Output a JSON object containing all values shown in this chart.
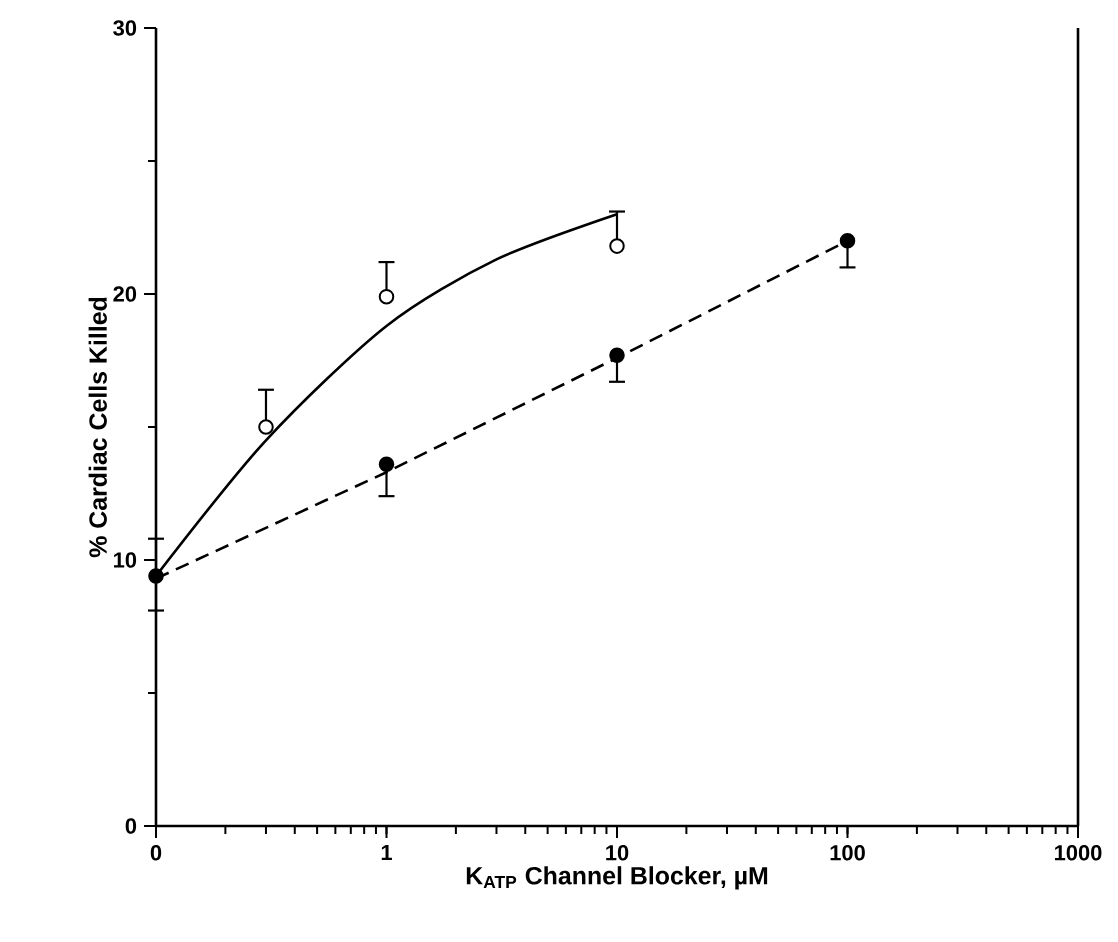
{
  "chart_data": {
    "type": "scatter",
    "xlabel": "K$_{ATP}$ Channel Blocker, µM",
    "ylabel": "% Cardiac Cells Killed",
    "log": "x",
    "xlim": [
      0.1,
      1000
    ],
    "xticks": [
      {
        "value": 0.1,
        "label": "0"
      },
      1,
      10,
      100,
      1000
    ],
    "ylim": [
      0,
      30
    ],
    "yticks": [
      0,
      10,
      20,
      30
    ],
    "series": [
      {
        "type": "line",
        "line_style": "solid",
        "marker": "none",
        "color": "#000000",
        "x": [
          0.1,
          0.3,
          1,
          3,
          10
        ],
        "values": [
          9.4,
          14.5,
          18.8,
          21.3,
          23.0
        ]
      },
      {
        "type": "line",
        "line_style": "dashed",
        "marker": "none",
        "color": "#000000",
        "x": [
          0.1,
          1,
          10,
          100
        ],
        "values": [
          9.3,
          13.3,
          17.6,
          22.0
        ]
      },
      {
        "marker": "circle",
        "color": "#ffffff",
        "x": [
          0.3,
          1,
          10
        ],
        "values": [
          15.0,
          19.9,
          21.8
        ],
        "errors": [
          [
            15.0,
            16.4
          ],
          [
            19.9,
            21.2
          ],
          [
            21.8,
            23.1
          ]
        ]
      },
      {
        "marker": "circle",
        "color": "#000000",
        "x": [
          0.1,
          1,
          10,
          100
        ],
        "values": [
          9.4,
          13.6,
          17.7,
          22.0
        ],
        "errors": [
          [
            8.1,
            10.8
          ],
          [
            12.4,
            13.6
          ],
          [
            16.7,
            17.7
          ],
          [
            21.0,
            22.0
          ]
        ]
      }
    ]
  }
}
